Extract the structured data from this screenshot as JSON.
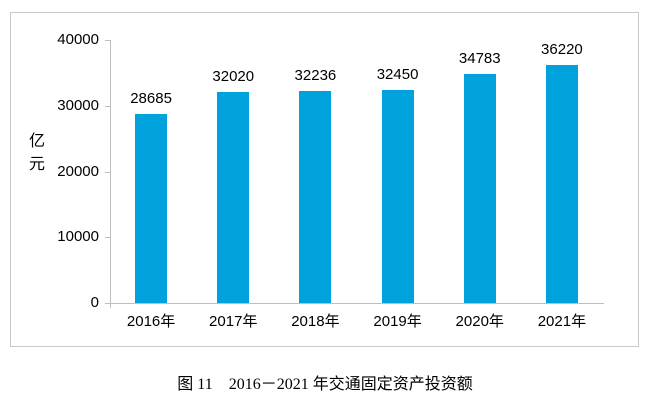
{
  "figure": {
    "caption": "图 11　2016－2021 年交通固定资产投资额"
  },
  "chart_data": {
    "type": "bar",
    "title": "",
    "categories": [
      "2016年",
      "2017年",
      "2018年",
      "2019年",
      "2020年",
      "2021年"
    ],
    "values": [
      28685,
      32020,
      32236,
      32450,
      34783,
      36220
    ],
    "ylabel": "亿元",
    "xlabel": "",
    "yticks": [
      0,
      10000,
      20000,
      30000,
      40000
    ],
    "ylim": [
      0,
      40000
    ],
    "grid": false,
    "legend": false,
    "data_labels_shown": true,
    "colors": {
      "bar": "#00a2de",
      "axis": "#bfbfbf",
      "frame_border": "#c9c9c9",
      "text": "#000000",
      "background": "#ffffff"
    }
  }
}
